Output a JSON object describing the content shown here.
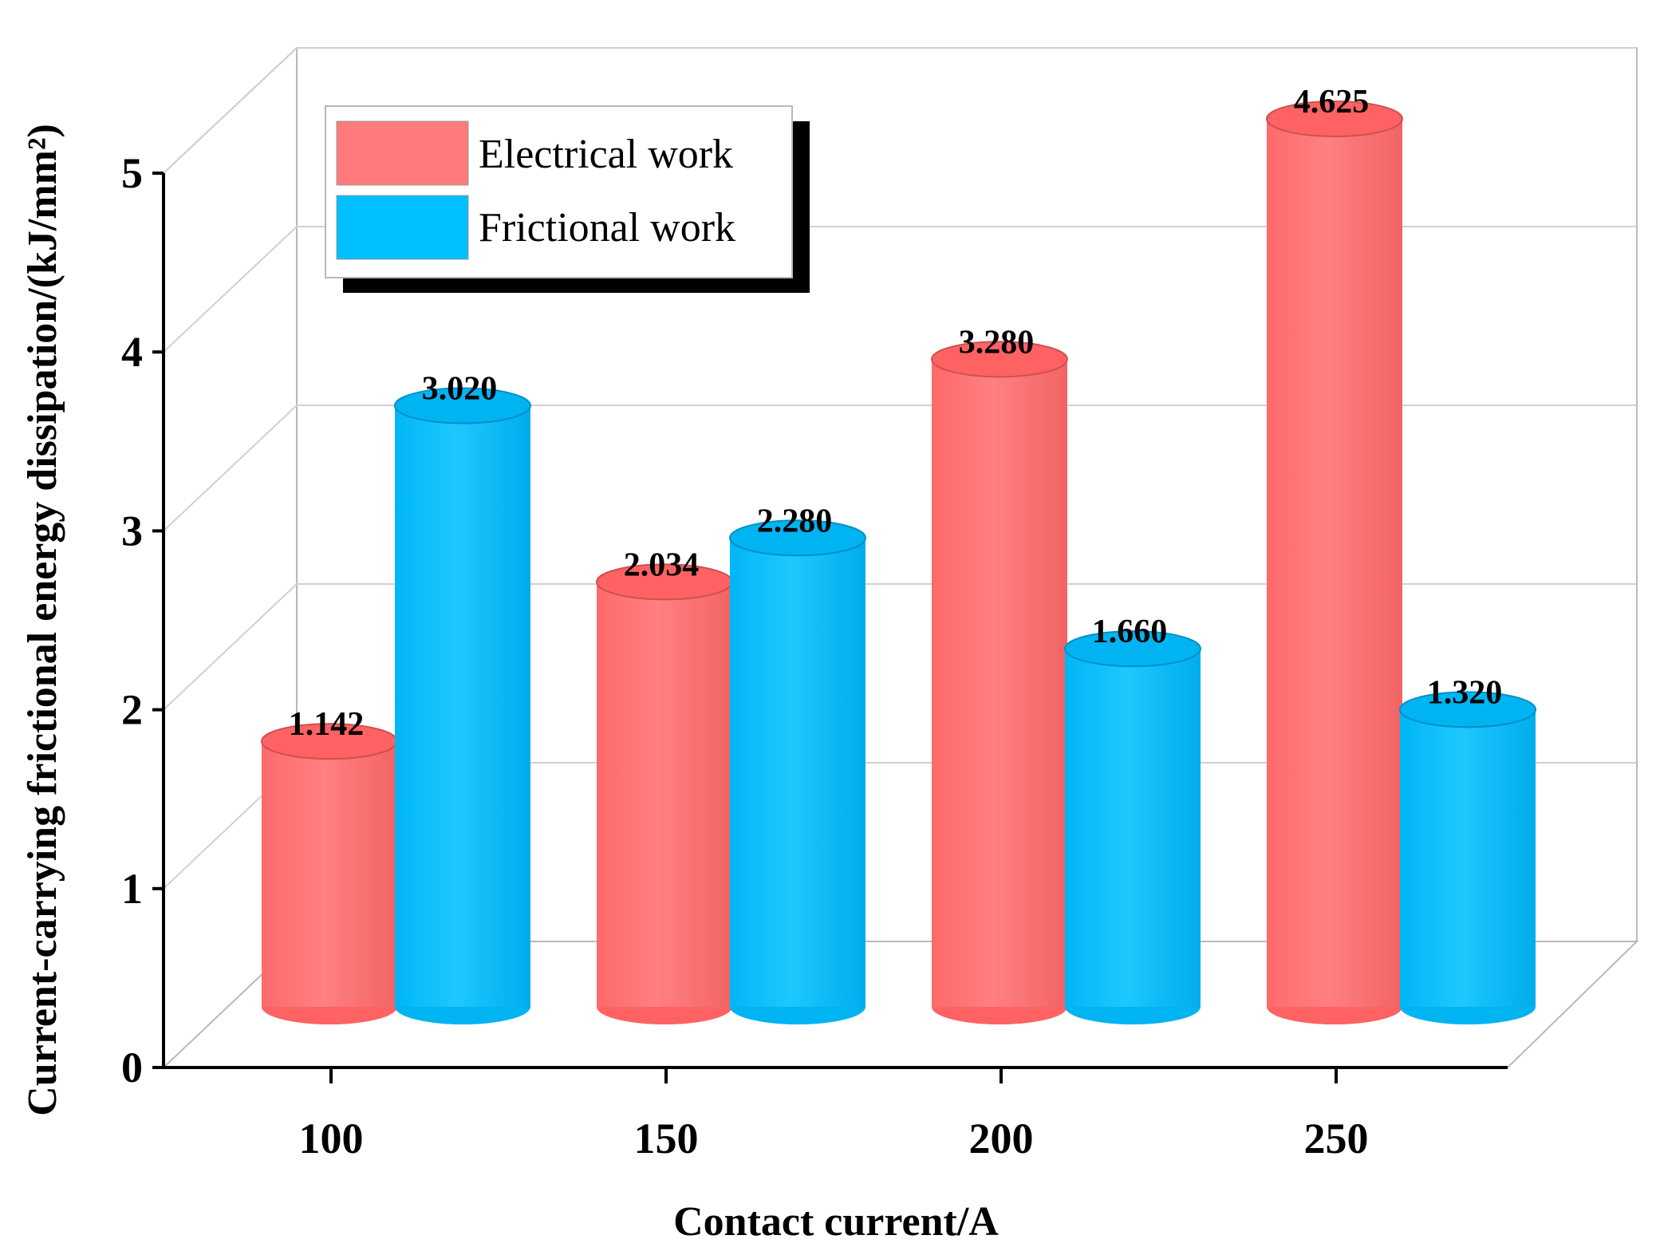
{
  "chart_data": {
    "type": "bar",
    "style": "3d-cylinder",
    "categories": [
      "100",
      "150",
      "200",
      "250"
    ],
    "series": [
      {
        "name": "Electrical work",
        "color": "#ff7070",
        "values": [
          1.142,
          2.034,
          3.28,
          4.625
        ]
      },
      {
        "name": "Frictional work",
        "color": "#00bfff",
        "values": [
          3.02,
          2.28,
          1.66,
          1.32
        ]
      }
    ],
    "value_labels": {
      "Electrical work": [
        "1.142",
        "2.034",
        "3.280",
        "4.625"
      ],
      "Frictional work": [
        "3.020",
        "2.280",
        "1.660",
        "1.320"
      ]
    },
    "yticks": [
      "0",
      "1",
      "2",
      "3",
      "4",
      "5"
    ],
    "ylim": [
      0,
      5
    ],
    "xlabel": "Contact current/A",
    "ylabel": "Current-carrying frictional energy dissipation/(kJ/mm²)",
    "legend": {
      "position": "top-left",
      "items": [
        "Electrical work",
        "Frictional work"
      ]
    },
    "grid": true
  }
}
